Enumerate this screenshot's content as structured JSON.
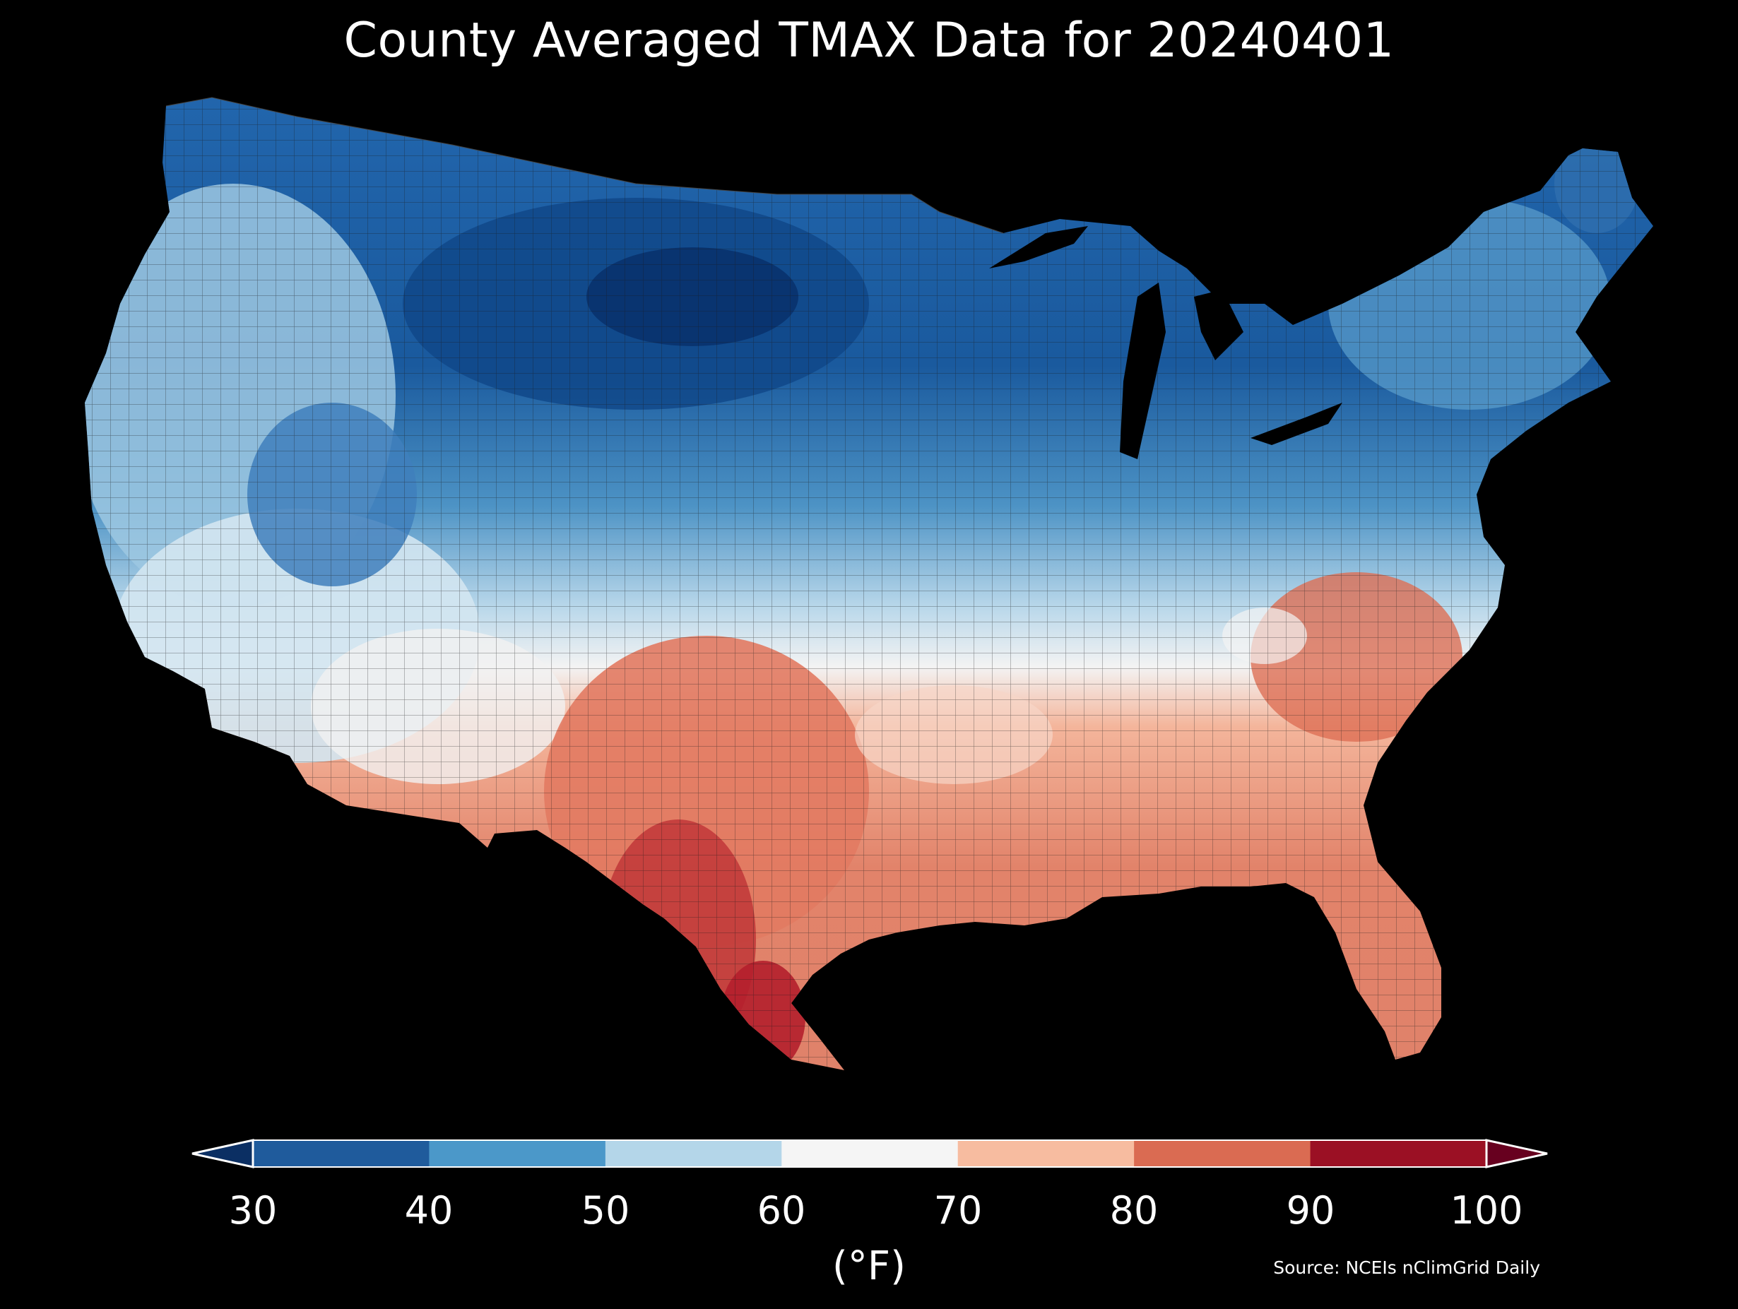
{
  "title": "County Averaged TMAX Data for 20240401",
  "colorbar": {
    "ticks": [
      "30",
      "40",
      "50",
      "60",
      "70",
      "80",
      "90",
      "100"
    ],
    "unit": "(°F)",
    "bins": [
      {
        "range": "<30",
        "color": "#0b2f63"
      },
      {
        "range": "30-40",
        "color": "#1f5b9c"
      },
      {
        "range": "40-50",
        "color": "#4b98c9"
      },
      {
        "range": "50-60",
        "color": "#b4d6e9"
      },
      {
        "range": "60-70",
        "color": "#f5f5f5"
      },
      {
        "range": "70-80",
        "color": "#f7bca0"
      },
      {
        "range": "80-90",
        "color": "#da6b52"
      },
      {
        "range": "90-100",
        "color": "#9b1024"
      },
      {
        "range": ">100",
        "color": "#67001f"
      }
    ]
  },
  "source": "Source: NCEIs nClimGrid Daily"
}
